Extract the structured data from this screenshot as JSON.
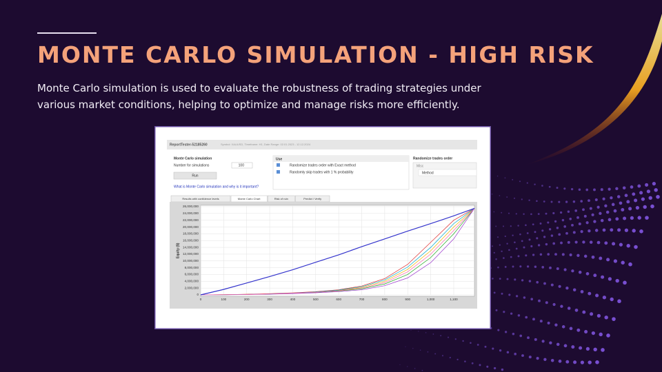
{
  "slide": {
    "title": "MONTE CARLO SIMULATION - HIGH RISK",
    "description": "Monte Carlo simulation is used to evaluate the robustness of trading strategies under various market conditions, helping to optimize and manage risks more efficiently."
  },
  "app": {
    "window_title": "ReportTester-52185260",
    "window_info": "Symbol: XAUUSD, Timeframe: H1, Date Range: 02.01.2023 - 12.12.2024",
    "section_title": "Monte Carlo simulation",
    "simulations_label": "Number for simulations",
    "simulations_value": "100",
    "run_button": "Run",
    "help_link": "What is Monte Carlo simulation and why is it important?",
    "use_header": "Use",
    "options": [
      "Randomize trades order with Exact method",
      "Randomly skip trades with 1 % probability"
    ],
    "randomize_header": "Randomize trades order",
    "misc": "Misc",
    "method": "Method",
    "tabs": [
      "Results with confidence levels",
      "Monte Carlo Chart",
      "Risk of ruin",
      "Predict / Verify"
    ]
  },
  "chart_data": {
    "type": "line",
    "ylabel": "Equity ($)",
    "x": [
      0,
      100,
      200,
      300,
      400,
      500,
      600,
      700,
      800,
      900,
      1000,
      1100,
      1190
    ],
    "xlim": [
      0,
      1190
    ],
    "ylim": [
      0,
      26000000
    ],
    "xticks": [
      0,
      100,
      200,
      300,
      400,
      500,
      600,
      700,
      800,
      900,
      {
        "value": 1000,
        "label": "1,000"
      },
      {
        "value": 1100,
        "label": "1,100"
      }
    ],
    "yticks": [
      0,
      {
        "value": 2000000,
        "label": "2,000,000"
      },
      {
        "value": 4000000,
        "label": "4,000,000"
      },
      {
        "value": 6000000,
        "label": "6,000,000"
      },
      {
        "value": 8000000,
        "label": "8,000,000"
      },
      {
        "value": 10000000,
        "label": "10,000,000"
      },
      {
        "value": 12000000,
        "label": "12,000,000"
      },
      {
        "value": 14000000,
        "label": "14,000,000"
      },
      {
        "value": 16000000,
        "label": "16,000,000"
      },
      {
        "value": 18000000,
        "label": "18,000,000"
      },
      {
        "value": 20000000,
        "label": "20,000,000"
      },
      {
        "value": 22000000,
        "label": "22,000,000"
      },
      {
        "value": 24000000,
        "label": "24,000,000"
      },
      {
        "value": 26000000,
        "label": "26,000,000"
      }
    ],
    "grid": true,
    "series": [
      {
        "color": "#f2b400",
        "values": [
          0,
          50000,
          150000,
          300000,
          500000,
          800000,
          1300000,
          2200000,
          4000000,
          7500000,
          13000000,
          20000000,
          25500000
        ]
      },
      {
        "color": "#22aa22",
        "values": [
          0,
          40000,
          120000,
          250000,
          450000,
          700000,
          1100000,
          1800000,
          3200000,
          6000000,
          11000000,
          18000000,
          25500000
        ]
      },
      {
        "color": "#e03030",
        "values": [
          0,
          60000,
          180000,
          350000,
          600000,
          950000,
          1500000,
          2600000,
          4800000,
          9000000,
          15500000,
          22000000,
          25500000
        ]
      },
      {
        "color": "#9933cc",
        "values": [
          0,
          30000,
          100000,
          200000,
          380000,
          600000,
          950000,
          1500000,
          2700000,
          5000000,
          9500000,
          16500000,
          25500000
        ]
      },
      {
        "color": "#00aacc",
        "values": [
          0,
          50000,
          140000,
          280000,
          520000,
          850000,
          1400000,
          2400000,
          4400000,
          8200000,
          14000000,
          21000000,
          25500000
        ]
      },
      {
        "color": "#ff66aa",
        "values": [
          0,
          45000,
          130000,
          270000,
          480000,
          750000,
          1200000,
          2000000,
          3600000,
          6800000,
          12000000,
          19000000,
          25500000
        ]
      },
      {
        "color": "#3333cc",
        "values": [
          0,
          1600000,
          3500000,
          5400000,
          7400000,
          9600000,
          11800000,
          14200000,
          16500000,
          18800000,
          21000000,
          23300000,
          25500000
        ]
      }
    ]
  }
}
